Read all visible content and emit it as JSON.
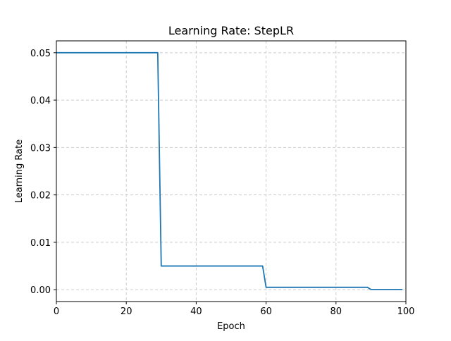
{
  "chart_data": {
    "type": "line",
    "title": "Learning Rate: StepLR",
    "xlabel": "Epoch",
    "ylabel": "Learning Rate",
    "xlim": [
      0,
      100
    ],
    "ylim": [
      -0.0025,
      0.0525
    ],
    "xticks": [
      0,
      20,
      40,
      60,
      80,
      100
    ],
    "xtick_labels": [
      "0",
      "20",
      "40",
      "60",
      "80",
      "100"
    ],
    "yticks": [
      0.0,
      0.01,
      0.02,
      0.03,
      0.04,
      0.05
    ],
    "ytick_labels": [
      "0.00",
      "0.01",
      "0.02",
      "0.03",
      "0.04",
      "0.05"
    ],
    "grid": true,
    "grid_style": "dashed",
    "series": [
      {
        "color": "#1f77b4",
        "x": [
          0,
          29,
          30,
          59,
          60,
          89,
          90,
          99
        ],
        "y": [
          0.05,
          0.05,
          0.005,
          0.005,
          0.0005,
          0.0005,
          5e-05,
          5e-05
        ]
      }
    ]
  }
}
